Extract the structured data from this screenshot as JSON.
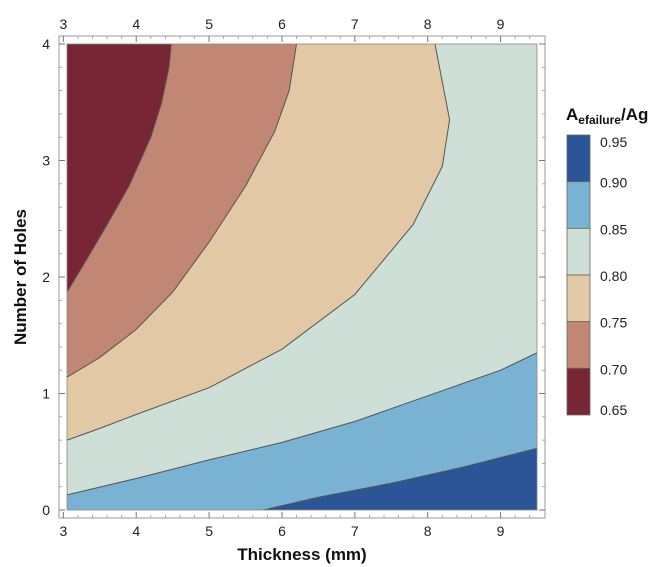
{
  "chart_data": {
    "type": "contour",
    "xlabel": "Thickness (mm)",
    "ylabel": "Number of Holes",
    "xlim": [
      3.05,
      9.5
    ],
    "ylim": [
      0,
      4
    ],
    "x_ticks": [
      "3",
      "4",
      "5",
      "6",
      "7",
      "8",
      "9"
    ],
    "y_ticks": [
      "0",
      "1",
      "2",
      "3",
      "4"
    ],
    "legend": {
      "title_main": "A",
      "title_sub": "efailure",
      "title_suffix": "/Ag",
      "placement": "right",
      "levels": [
        {
          "label": "0.95",
          "color": "#2b5597"
        },
        {
          "label": "0.90",
          "color": "#79b2d2"
        },
        {
          "label": "0.85",
          "color": "#cddfd7"
        },
        {
          "label": "0.80",
          "color": "#e2c8a4"
        },
        {
          "label": "0.75",
          "color": "#c18674"
        },
        {
          "label": "0.70",
          "color": "#782635"
        },
        {
          "label": "0.65",
          "color": "#782635"
        }
      ]
    },
    "regions": [
      {
        "range": "<0.70",
        "color": "#782635"
      },
      {
        "range": "0.70-0.75",
        "color": "#c18674"
      },
      {
        "range": "0.75-0.80",
        "color": "#e2c8a4"
      },
      {
        "range": "0.80-0.85",
        "color": "#cddfd7"
      },
      {
        "range": "0.85-0.90",
        "color": "#79b2d2"
      },
      {
        "range": ">0.90",
        "color": "#2b5597"
      }
    ],
    "contours": [
      {
        "level": "0.70",
        "points": [
          [
            3.05,
            1.87
          ],
          [
            3.3,
            2.13
          ],
          [
            3.6,
            2.45
          ],
          [
            3.9,
            2.78
          ],
          [
            4.2,
            3.2
          ],
          [
            4.35,
            3.5
          ],
          [
            4.45,
            3.8
          ],
          [
            4.48,
            4.0
          ]
        ]
      },
      {
        "level": "0.75",
        "points": [
          [
            3.05,
            1.14
          ],
          [
            3.5,
            1.31
          ],
          [
            4.0,
            1.55
          ],
          [
            4.5,
            1.87
          ],
          [
            5.0,
            2.3
          ],
          [
            5.5,
            2.78
          ],
          [
            5.9,
            3.25
          ],
          [
            6.1,
            3.6
          ],
          [
            6.2,
            4.0
          ]
        ]
      },
      {
        "level": "0.80",
        "points": [
          [
            3.05,
            0.6
          ],
          [
            3.5,
            0.7
          ],
          [
            4.0,
            0.82
          ],
          [
            5.0,
            1.05
          ],
          [
            6.0,
            1.38
          ],
          [
            7.0,
            1.85
          ],
          [
            7.8,
            2.45
          ],
          [
            8.2,
            2.95
          ],
          [
            8.3,
            3.35
          ],
          [
            8.1,
            4.0
          ]
        ]
      },
      {
        "level": "0.85",
        "points": [
          [
            3.05,
            0.13
          ],
          [
            4.0,
            0.27
          ],
          [
            5.0,
            0.43
          ],
          [
            6.0,
            0.58
          ],
          [
            7.0,
            0.76
          ],
          [
            8.0,
            0.98
          ],
          [
            9.0,
            1.2
          ],
          [
            9.5,
            1.35
          ]
        ]
      },
      {
        "level": "0.90",
        "points": [
          [
            5.75,
            0.0
          ],
          [
            6.5,
            0.11
          ],
          [
            7.5,
            0.23
          ],
          [
            8.5,
            0.37
          ],
          [
            9.5,
            0.53
          ]
        ]
      }
    ]
  }
}
